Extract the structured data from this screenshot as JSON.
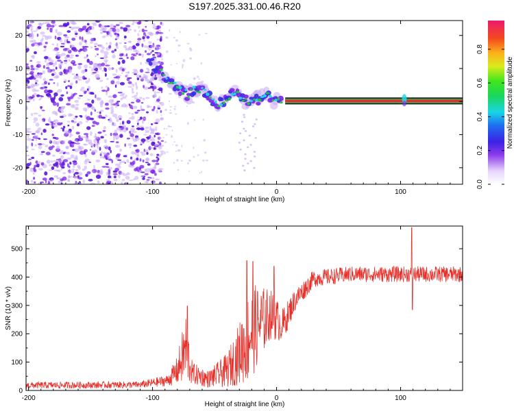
{
  "title": "S197.2025.331.00.46.R20",
  "colors": {
    "snr_line": "#e8302a",
    "track_red": "#e8293b",
    "track_green": "#22c23a",
    "track_dark": "#0b0b10",
    "blob_purple": "#7a22e8",
    "blob_blue": "#3a2be0",
    "blob_cyan": "#23d7e6",
    "blob_green": "#22c63a",
    "blob_light": "#c6a8f5"
  },
  "chart_data": [
    {
      "type": "heatmap",
      "name": "spectrogram",
      "xlabel": "Height of straight line (km)",
      "ylabel": "Frequency (Hz)",
      "xlim": [
        -202,
        150
      ],
      "ylim": [
        -25,
        24.5
      ],
      "xticks": [
        -200,
        -100,
        0,
        100
      ],
      "xtick_labels": [
        "-200",
        "-100",
        "0",
        "100"
      ],
      "yticks": [
        -20,
        -10,
        0,
        10,
        20
      ],
      "ytick_labels": [
        "-20",
        "-10",
        "0",
        "10",
        "20"
      ],
      "noise_region_x": [
        -202,
        -92
      ],
      "track": [
        {
          "x": -103,
          "y": 12.5
        },
        {
          "x": -96,
          "y": 10
        },
        {
          "x": -89,
          "y": 7
        },
        {
          "x": -83,
          "y": 5
        },
        {
          "x": -77,
          "y": 3.5
        },
        {
          "x": -71,
          "y": 2
        },
        {
          "x": -65,
          "y": 4
        },
        {
          "x": -59,
          "y": 3
        },
        {
          "x": -53,
          "y": 1
        },
        {
          "x": -47,
          "y": -1
        },
        {
          "x": -41,
          "y": 0.5
        },
        {
          "x": -35,
          "y": 3
        },
        {
          "x": -29,
          "y": 2
        },
        {
          "x": -23,
          "y": -0.5
        },
        {
          "x": -16,
          "y": 0.5
        },
        {
          "x": -9,
          "y": 2.5
        },
        {
          "x": -3,
          "y": 0.5
        },
        {
          "x": 4,
          "y": 0.2
        }
      ],
      "steady_line": {
        "x_start": 7,
        "x_end": 150,
        "y": 0.2
      },
      "blip_x": 103,
      "colorbar": {
        "label": "Normalized spectral amplitude",
        "range": [
          0,
          0.97
        ],
        "ticks": [
          0.0,
          0.2,
          0.4,
          0.6,
          0.8
        ],
        "tick_labels": [
          "0.0",
          "0.2",
          "0.4",
          "0.6",
          "0.8"
        ]
      }
    },
    {
      "type": "line",
      "name": "snr",
      "xlabel": "Height of straight line (km)",
      "ylabel": "SNR (10 * v/v)",
      "xlim": [
        -202,
        150
      ],
      "ylim": [
        0,
        580
      ],
      "xticks": [
        -200,
        -100,
        0,
        100
      ],
      "xtick_labels": [
        "-200",
        "-100",
        "0",
        "100"
      ],
      "yticks": [
        0,
        100,
        200,
        300,
        400,
        500
      ],
      "ytick_labels": [
        "0",
        "100",
        "200",
        "300",
        "400",
        "500"
      ],
      "envelope": [
        {
          "x": -202,
          "base": 18,
          "amp": 12
        },
        {
          "x": -110,
          "base": 20,
          "amp": 12
        },
        {
          "x": -88,
          "base": 35,
          "amp": 20
        },
        {
          "x": -80,
          "base": 70,
          "amp": 50
        },
        {
          "x": -73,
          "base": 150,
          "amp": 130
        },
        {
          "x": -68,
          "base": 60,
          "amp": 40
        },
        {
          "x": -55,
          "base": 40,
          "amp": 30
        },
        {
          "x": -40,
          "base": 70,
          "amp": 60
        },
        {
          "x": -30,
          "base": 130,
          "amp": 110
        },
        {
          "x": -22,
          "base": 200,
          "amp": 180
        },
        {
          "x": -15,
          "base": 230,
          "amp": 140
        },
        {
          "x": -5,
          "base": 270,
          "amp": 90
        },
        {
          "x": 5,
          "base": 230,
          "amp": 60
        },
        {
          "x": 15,
          "base": 320,
          "amp": 40
        },
        {
          "x": 30,
          "base": 395,
          "amp": 30
        },
        {
          "x": 60,
          "base": 410,
          "amp": 28
        },
        {
          "x": 100,
          "base": 410,
          "amp": 28
        },
        {
          "x": 150,
          "base": 410,
          "amp": 28
        }
      ],
      "peaks": [
        {
          "x": -72,
          "y": 298
        },
        {
          "x": -24,
          "y": 458
        },
        {
          "x": -19,
          "y": 455
        },
        {
          "x": -2,
          "y": 438
        },
        {
          "x": 109,
          "y": 575
        }
      ],
      "dips": [
        {
          "x": 109,
          "y": 285
        }
      ]
    }
  ]
}
